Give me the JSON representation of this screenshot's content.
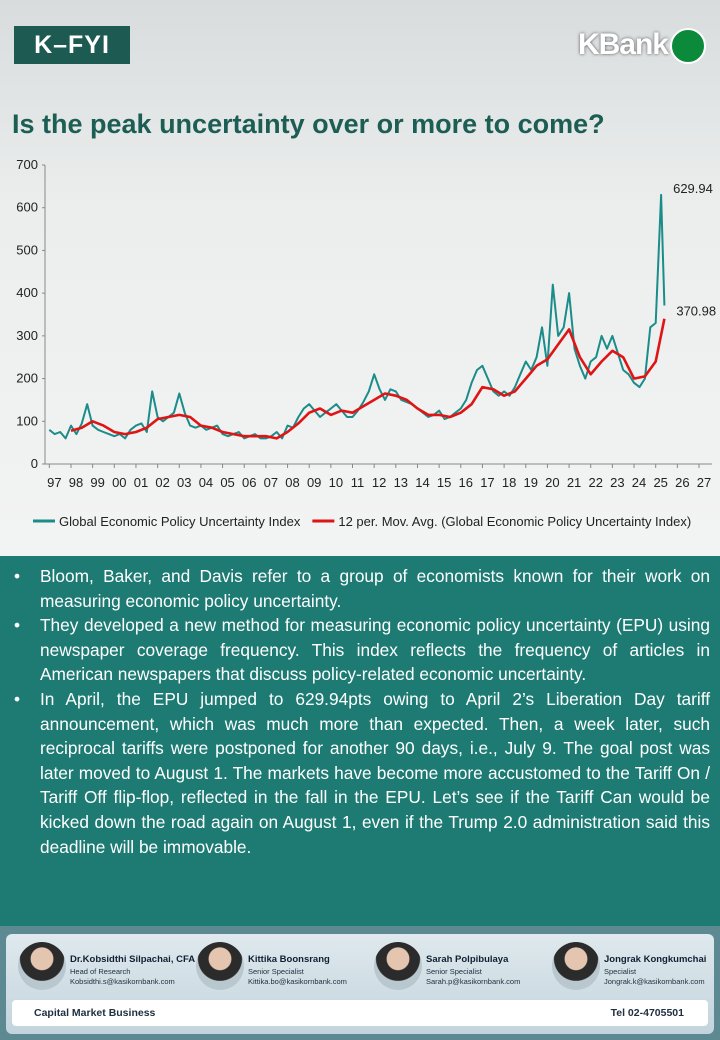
{
  "header": {
    "badge": "K–FYI",
    "brand": "KBank"
  },
  "chart_data": {
    "type": "line",
    "title": "Is the peak uncertainty over or more to come?",
    "xlim": [
      1996.8,
      2027.6
    ],
    "ylim": [
      0,
      700
    ],
    "yticks": [
      0,
      100,
      200,
      300,
      400,
      500,
      600,
      700
    ],
    "xticks": [
      {
        "value": 1997,
        "label": "97"
      },
      {
        "value": 1998,
        "label": "98"
      },
      {
        "value": 1999,
        "label": "99"
      },
      {
        "value": 2000,
        "label": "00"
      },
      {
        "value": 2001,
        "label": "01"
      },
      {
        "value": 2002,
        "label": "02"
      },
      {
        "value": 2003,
        "label": "03"
      },
      {
        "value": 2004,
        "label": "04"
      },
      {
        "value": 2005,
        "label": "05"
      },
      {
        "value": 2006,
        "label": "06"
      },
      {
        "value": 2007,
        "label": "07"
      },
      {
        "value": 2008,
        "label": "08"
      },
      {
        "value": 2009,
        "label": "09"
      },
      {
        "value": 2010,
        "label": "10"
      },
      {
        "value": 2011,
        "label": "11"
      },
      {
        "value": 2012,
        "label": "12"
      },
      {
        "value": 2013,
        "label": "13"
      },
      {
        "value": 2014,
        "label": "14"
      },
      {
        "value": 2015,
        "label": "15"
      },
      {
        "value": 2016,
        "label": "16"
      },
      {
        "value": 2017,
        "label": "17"
      },
      {
        "value": 2018,
        "label": "18"
      },
      {
        "value": 2019,
        "label": "19"
      },
      {
        "value": 2020,
        "label": "20"
      },
      {
        "value": 2021,
        "label": "21"
      },
      {
        "value": 2022,
        "label": "22"
      },
      {
        "value": 2023,
        "label": "23"
      },
      {
        "value": 2024,
        "label": "24"
      },
      {
        "value": 2025,
        "label": "25"
      },
      {
        "value": 2026,
        "label": "26"
      },
      {
        "value": 2027,
        "label": "27"
      }
    ],
    "grid": false,
    "legend": "bottom",
    "series": [
      {
        "name": "Global Economic Policy Uncertainty Index",
        "color": "#1a8c8a",
        "x": [
          1997,
          1997.25,
          1997.5,
          1997.75,
          1998,
          1998.25,
          1998.5,
          1998.75,
          1999,
          1999.25,
          1999.5,
          1999.75,
          2000,
          2000.25,
          2000.5,
          2000.75,
          2001,
          2001.25,
          2001.5,
          2001.75,
          2002,
          2002.25,
          2002.5,
          2002.75,
          2003,
          2003.25,
          2003.5,
          2003.75,
          2004,
          2004.25,
          2004.5,
          2004.75,
          2005,
          2005.25,
          2005.5,
          2005.75,
          2006,
          2006.25,
          2006.5,
          2006.75,
          2007,
          2007.25,
          2007.5,
          2007.75,
          2008,
          2008.25,
          2008.5,
          2008.75,
          2009,
          2009.25,
          2009.5,
          2009.75,
          2010,
          2010.25,
          2010.5,
          2010.75,
          2011,
          2011.25,
          2011.5,
          2011.75,
          2012,
          2012.25,
          2012.5,
          2012.75,
          2013,
          2013.25,
          2013.5,
          2013.75,
          2014,
          2014.25,
          2014.5,
          2014.75,
          2015,
          2015.25,
          2015.5,
          2015.75,
          2016,
          2016.25,
          2016.5,
          2016.75,
          2017,
          2017.25,
          2017.5,
          2017.75,
          2018,
          2018.25,
          2018.5,
          2018.75,
          2019,
          2019.25,
          2019.5,
          2019.75,
          2020,
          2020.25,
          2020.5,
          2020.75,
          2021,
          2021.25,
          2021.5,
          2021.75,
          2022,
          2022.25,
          2022.5,
          2022.75,
          2023,
          2023.25,
          2023.5,
          2023.75,
          2024,
          2024.25,
          2024.5,
          2024.75,
          2025,
          2025.25,
          2025.4
        ],
        "values": [
          80,
          70,
          75,
          60,
          90,
          70,
          95,
          140,
          90,
          80,
          75,
          70,
          65,
          70,
          60,
          80,
          90,
          95,
          75,
          170,
          110,
          100,
          110,
          120,
          165,
          120,
          90,
          85,
          90,
          80,
          85,
          90,
          70,
          65,
          70,
          75,
          60,
          65,
          70,
          60,
          60,
          65,
          75,
          60,
          90,
          85,
          110,
          130,
          140,
          125,
          110,
          120,
          130,
          140,
          125,
          110,
          110,
          125,
          145,
          170,
          210,
          175,
          150,
          175,
          170,
          150,
          145,
          140,
          130,
          120,
          110,
          115,
          125,
          105,
          110,
          120,
          130,
          150,
          190,
          220,
          230,
          200,
          170,
          160,
          170,
          160,
          180,
          210,
          240,
          220,
          250,
          320,
          230,
          420,
          300,
          320,
          400,
          270,
          230,
          200,
          240,
          250,
          300,
          270,
          300,
          260,
          220,
          210,
          190,
          180,
          200,
          320,
          330,
          629.94,
          370.98
        ]
      },
      {
        "name": "12 per. Mov. Avg. (Global Economic Policy Uncertainty Index)",
        "color": "#e01414",
        "x": [
          1998,
          1998.5,
          1999,
          1999.5,
          2000,
          2000.5,
          2001,
          2001.5,
          2002,
          2002.5,
          2003,
          2003.5,
          2004,
          2004.5,
          2005,
          2005.5,
          2006,
          2006.5,
          2007,
          2007.5,
          2008,
          2008.5,
          2009,
          2009.5,
          2010,
          2010.5,
          2011,
          2011.5,
          2012,
          2012.5,
          2013,
          2013.5,
          2014,
          2014.5,
          2015,
          2015.5,
          2016,
          2016.5,
          2017,
          2017.5,
          2018,
          2018.5,
          2019,
          2019.5,
          2020,
          2020.5,
          2021,
          2021.5,
          2022,
          2022.5,
          2023,
          2023.5,
          2024,
          2024.5,
          2025,
          2025.4
        ],
        "values": [
          78,
          85,
          100,
          90,
          75,
          70,
          75,
          85,
          105,
          110,
          115,
          110,
          90,
          85,
          75,
          70,
          65,
          65,
          65,
          60,
          75,
          95,
          120,
          130,
          115,
          125,
          120,
          135,
          150,
          165,
          160,
          150,
          130,
          115,
          115,
          110,
          120,
          140,
          180,
          175,
          160,
          170,
          200,
          230,
          245,
          280,
          315,
          250,
          210,
          240,
          265,
          250,
          200,
          205,
          240,
          340
        ]
      }
    ]
  },
  "bullets": [
    "Bloom, Baker, and Davis refer to a group of economists known for their work on measuring economic policy uncertainty.",
    "They developed a new method for measuring economic policy uncertainty (EPU) using newspaper coverage frequency. This index reflects the frequency of articles in American newspapers that discuss policy-related economic uncertainty.",
    "In April, the EPU jumped to 629.94pts owing to April 2’s Liberation Day tariff announcement, which was much more than expected. Then, a week later, such reciprocal tariffs were postponed for another 90 days, i.e., July 9. The goal post was later moved to August 1. The markets have become more accustomed to the Tariff On / Tariff Off flip-flop, reflected in the fall in the EPU. Let’s see if the Tariff Can would be kicked down the road again on August 1,  even if the Trump 2.0 administration said this deadline will be immovable."
  ],
  "footer": {
    "people": [
      {
        "name": "Dr.Kobsidthi Silpachai, CFA",
        "role": "Head of Research",
        "email": "Kobsidthi.s@kasikornbank.com"
      },
      {
        "name": "Kittika Boonsrang",
        "role": "Senior Specialist",
        "email": "Kittika.bo@kasikornbank.com"
      },
      {
        "name": "Sarah Polpibulaya",
        "role": "Senior Specialist",
        "email": "Sarah.p@kasikornbank.com"
      },
      {
        "name": "Jongrak Kongkumchai",
        "role": "Specialist",
        "email": "Jongrak.k@kasikornbank.com"
      }
    ],
    "unit": "Capital Market Business",
    "phone": "Tel 02-4705501"
  }
}
